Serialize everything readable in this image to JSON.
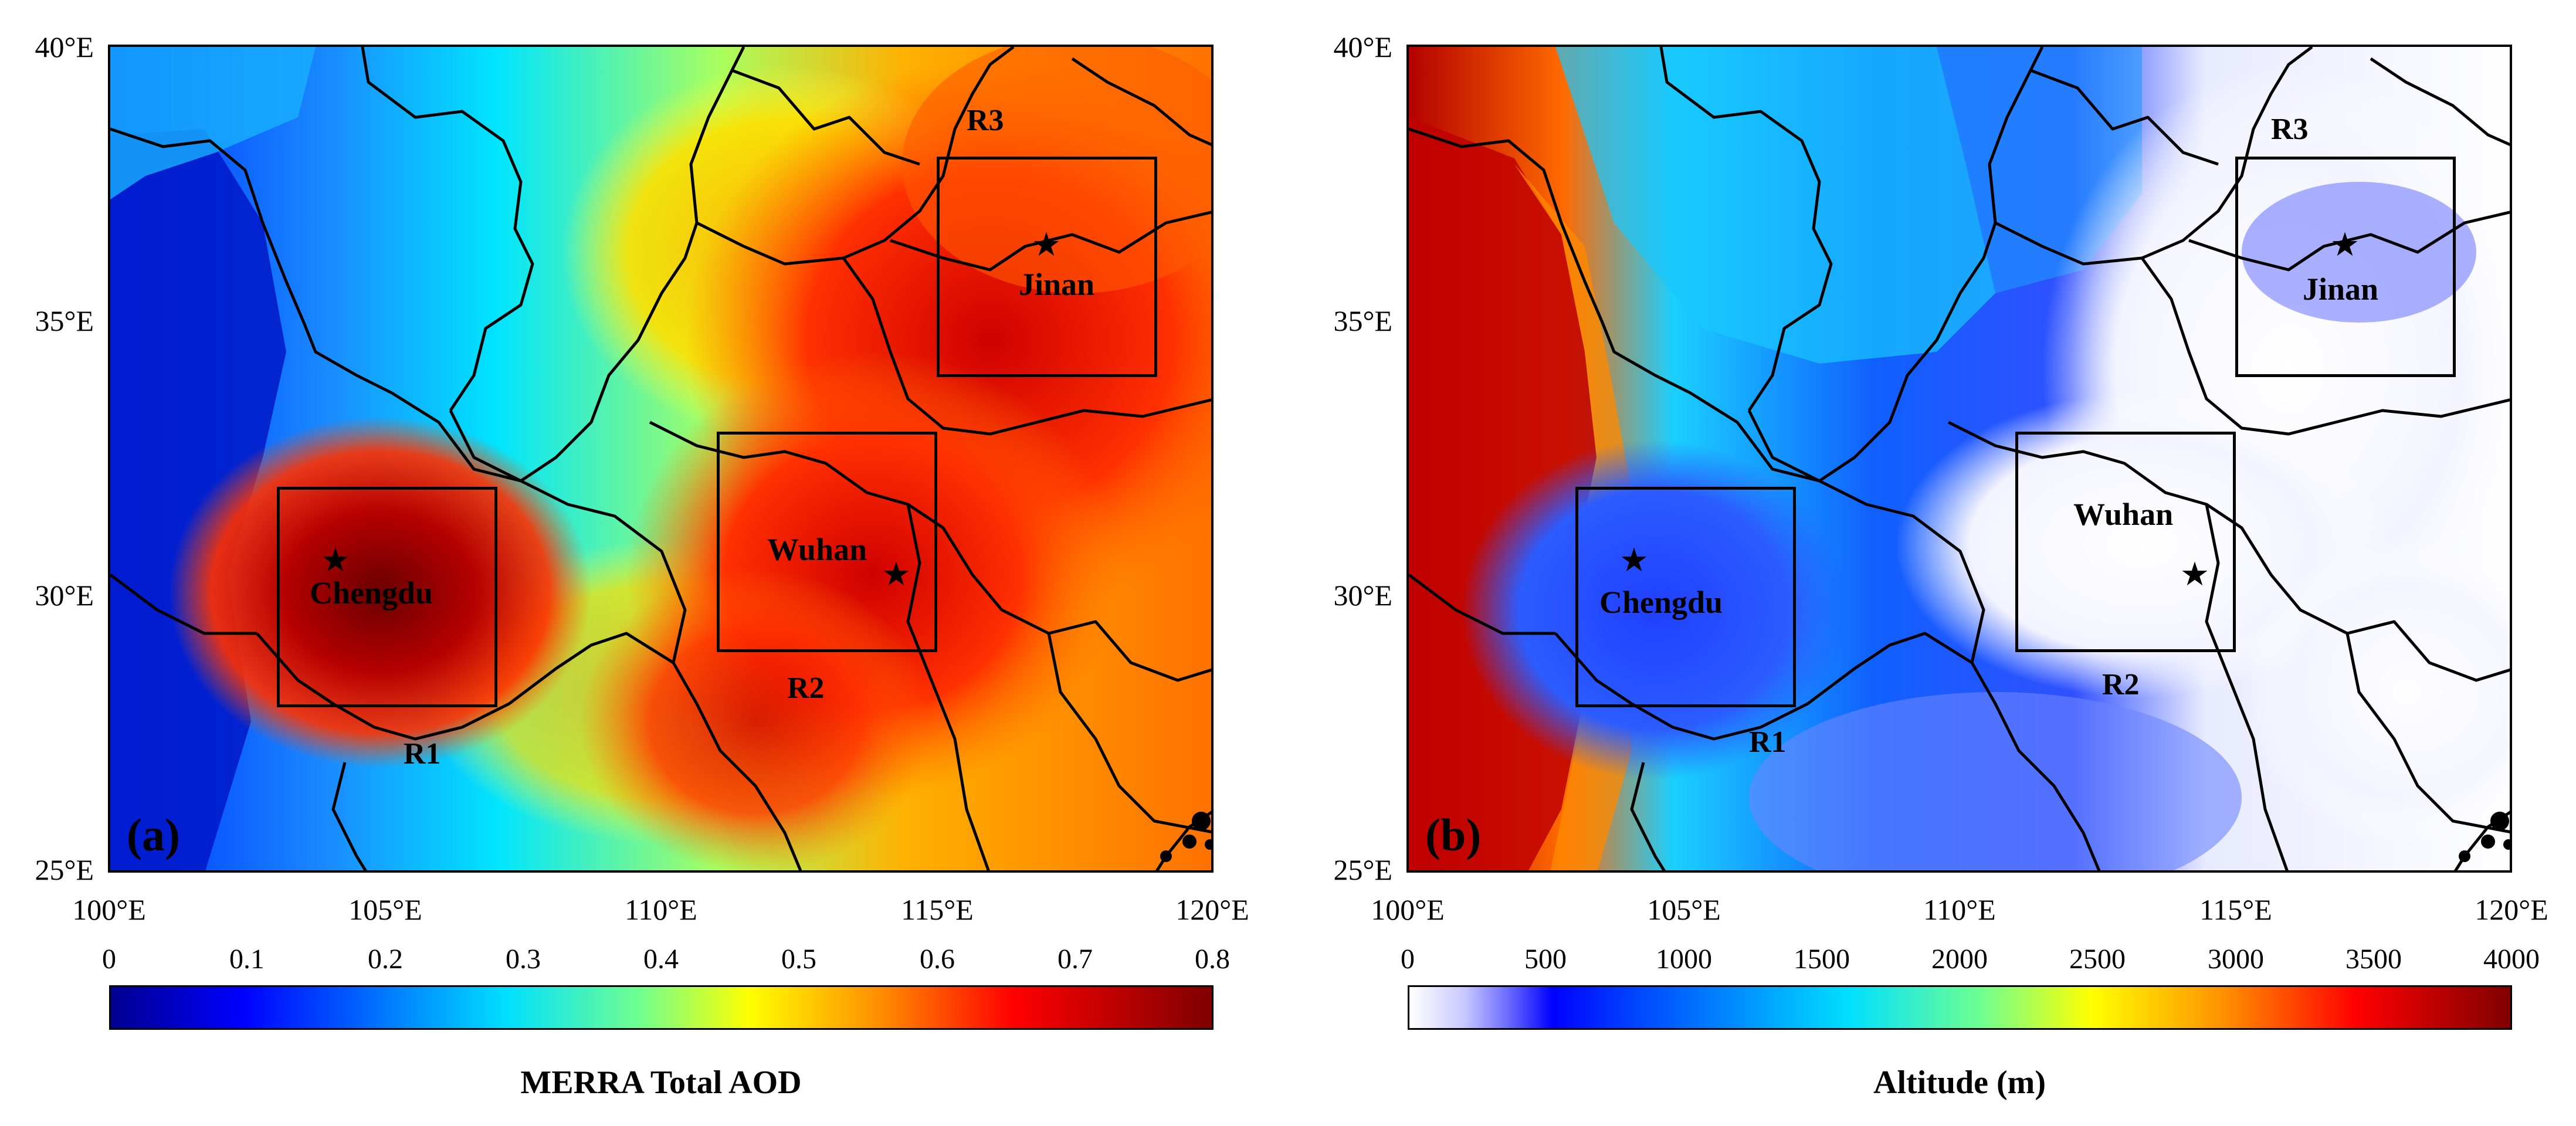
{
  "panels": {
    "a": {
      "label": "(a)",
      "colorbar_title": "MERRA Total AOD",
      "colorbar_ticks": [
        "0",
        "0.1",
        "0.2",
        "0.3",
        "0.4",
        "0.5",
        "0.6",
        "0.7",
        "0.8"
      ]
    },
    "b": {
      "label": "(b)",
      "colorbar_title": "Altitude (m)",
      "colorbar_ticks": [
        "0",
        "500",
        "1000",
        "1500",
        "2000",
        "2500",
        "3000",
        "3500",
        "4000"
      ]
    }
  },
  "axes": {
    "y_ticks": [
      "40°E",
      "35°E",
      "30°E",
      "25°E"
    ],
    "x_ticks": [
      "100°E",
      "105°E",
      "110°E",
      "115°E",
      "120°E"
    ]
  },
  "regions": {
    "r1": "R1",
    "r2": "R2",
    "r3": "R3"
  },
  "cities": {
    "chengdu": "Chengdu",
    "wuhan": "Wuhan",
    "jinan": "Jinan"
  },
  "star_glyph": "★",
  "colors": {
    "aod_low": "#00008f",
    "aod_mid": "#00ffff",
    "aod_high": "#7f0000",
    "alt_low": "#ffffff",
    "alt_high": "#800000"
  }
}
